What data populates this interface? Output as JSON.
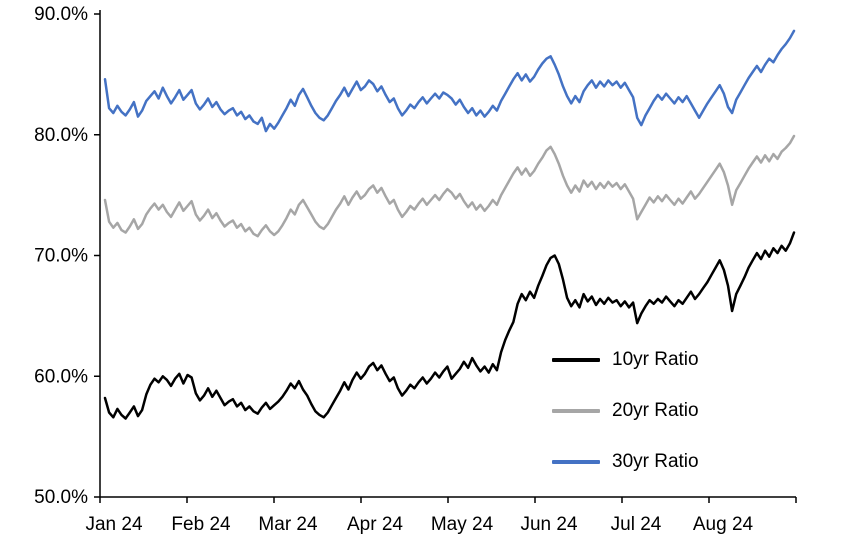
{
  "chart_data": {
    "type": "line",
    "title": "",
    "xlabel": "",
    "ylabel": "",
    "ylim": [
      50,
      90
    ],
    "grid": false,
    "legend_position": "inside-lower-right",
    "y_tick_values": [
      50,
      60,
      70,
      80,
      90
    ],
    "y_tick_labels": [
      "50.0%",
      "60.0%",
      "70.0%",
      "80.0%",
      "90.0%"
    ],
    "x_tick_labels": [
      "Jan 24",
      "Feb 24",
      "Mar 24",
      "Apr 24",
      "May 24",
      "Jun 24",
      "Jul 24",
      "Aug 24"
    ],
    "points_per_month": 21,
    "axis_color": "#000000",
    "series": [
      {
        "name": "10yr Ratio",
        "color": "#000000",
        "values": [
          58.2,
          57.0,
          56.6,
          57.3,
          56.8,
          56.5,
          57.0,
          57.5,
          56.7,
          57.2,
          58.5,
          59.3,
          59.8,
          59.5,
          60.0,
          59.7,
          59.2,
          59.8,
          60.2,
          59.4,
          60.1,
          59.9,
          58.6,
          58.0,
          58.4,
          59.0,
          58.3,
          58.8,
          58.2,
          57.6,
          57.9,
          58.1,
          57.5,
          57.8,
          57.2,
          57.5,
          57.1,
          56.9,
          57.4,
          57.8,
          57.3,
          57.6,
          57.9,
          58.3,
          58.8,
          59.4,
          59.0,
          59.6,
          58.9,
          58.4,
          57.7,
          57.1,
          56.8,
          56.6,
          57.0,
          57.6,
          58.2,
          58.8,
          59.5,
          58.9,
          59.7,
          60.3,
          59.8,
          60.2,
          60.8,
          61.1,
          60.5,
          60.9,
          60.2,
          59.6,
          59.9,
          59.0,
          58.4,
          58.8,
          59.3,
          59.0,
          59.5,
          59.9,
          59.4,
          59.8,
          60.3,
          59.9,
          60.4,
          60.8,
          59.8,
          60.2,
          60.6,
          61.2,
          60.7,
          61.5,
          60.9,
          60.4,
          60.8,
          60.3,
          61.0,
          60.5,
          62.0,
          63.0,
          63.8,
          64.5,
          66.0,
          66.8,
          66.3,
          67.0,
          66.5,
          67.5,
          68.3,
          69.2,
          69.8,
          70.0,
          69.3,
          68.0,
          66.5,
          65.8,
          66.3,
          65.7,
          66.8,
          66.2,
          66.6,
          65.9,
          66.4,
          66.0,
          66.5,
          66.1,
          66.3,
          65.8,
          66.2,
          65.7,
          66.1,
          64.4,
          65.2,
          65.8,
          66.3,
          66.0,
          66.4,
          66.1,
          66.6,
          66.2,
          65.8,
          66.3,
          66.0,
          66.5,
          67.0,
          66.4,
          66.8,
          67.3,
          67.8,
          68.4,
          69.0,
          69.6,
          68.8,
          67.5,
          65.4,
          66.8,
          67.5,
          68.2,
          69.0,
          69.6,
          70.2,
          69.7,
          70.4,
          69.9,
          70.6,
          70.2,
          70.8,
          70.4,
          71.0,
          71.9
        ]
      },
      {
        "name": "20yr Ratio",
        "color": "#a6a6a6",
        "values": [
          74.6,
          72.8,
          72.3,
          72.7,
          72.1,
          71.9,
          72.4,
          73.0,
          72.2,
          72.6,
          73.4,
          73.9,
          74.3,
          73.8,
          74.2,
          73.6,
          73.2,
          73.8,
          74.4,
          73.7,
          74.1,
          74.5,
          73.4,
          72.9,
          73.3,
          73.8,
          73.1,
          73.5,
          72.9,
          72.4,
          72.7,
          72.9,
          72.3,
          72.6,
          72.0,
          72.3,
          71.8,
          71.6,
          72.1,
          72.5,
          72.0,
          71.7,
          72.0,
          72.5,
          73.1,
          73.8,
          73.4,
          74.2,
          74.6,
          74.0,
          73.4,
          72.8,
          72.4,
          72.2,
          72.6,
          73.2,
          73.8,
          74.3,
          74.9,
          74.2,
          74.8,
          75.3,
          74.7,
          75.0,
          75.5,
          75.8,
          75.2,
          75.6,
          74.9,
          74.3,
          74.6,
          73.8,
          73.2,
          73.6,
          74.1,
          73.8,
          74.3,
          74.7,
          74.2,
          74.6,
          75.0,
          74.6,
          75.1,
          75.5,
          75.2,
          74.7,
          75.1,
          74.5,
          74.0,
          74.4,
          73.8,
          74.2,
          73.7,
          74.1,
          74.6,
          74.2,
          75.0,
          75.6,
          76.2,
          76.8,
          77.3,
          76.7,
          77.2,
          76.6,
          77.0,
          77.6,
          78.1,
          78.7,
          79.0,
          78.4,
          77.6,
          76.6,
          75.8,
          75.2,
          75.8,
          75.3,
          76.2,
          75.7,
          76.1,
          75.5,
          76.0,
          75.6,
          76.1,
          75.7,
          76.0,
          75.5,
          75.9,
          75.3,
          74.7,
          73.0,
          73.6,
          74.2,
          74.8,
          74.4,
          74.9,
          74.5,
          75.0,
          74.6,
          74.2,
          74.7,
          74.3,
          74.8,
          75.3,
          74.7,
          75.1,
          75.6,
          76.1,
          76.6,
          77.1,
          77.6,
          76.9,
          75.8,
          74.2,
          75.4,
          76.0,
          76.6,
          77.2,
          77.7,
          78.2,
          77.7,
          78.3,
          77.8,
          78.4,
          78.0,
          78.6,
          78.9,
          79.3,
          79.9
        ]
      },
      {
        "name": "30yr Ratio",
        "color": "#4472c4",
        "values": [
          84.6,
          82.2,
          81.8,
          82.4,
          81.9,
          81.6,
          82.1,
          82.7,
          81.5,
          82.0,
          82.8,
          83.2,
          83.6,
          83.0,
          83.9,
          83.2,
          82.6,
          83.1,
          83.7,
          82.9,
          83.3,
          83.7,
          82.6,
          82.1,
          82.5,
          83.0,
          82.3,
          82.7,
          82.1,
          81.7,
          82.0,
          82.2,
          81.6,
          81.9,
          81.3,
          81.6,
          81.1,
          80.9,
          81.4,
          80.3,
          80.9,
          80.5,
          81.0,
          81.6,
          82.2,
          82.9,
          82.4,
          83.3,
          83.8,
          83.1,
          82.4,
          81.8,
          81.4,
          81.2,
          81.6,
          82.2,
          82.8,
          83.3,
          83.9,
          83.2,
          83.8,
          84.4,
          83.7,
          84.0,
          84.5,
          84.2,
          83.6,
          84.0,
          83.3,
          82.7,
          83.0,
          82.2,
          81.6,
          82.0,
          82.5,
          82.2,
          82.7,
          83.1,
          82.6,
          83.0,
          83.4,
          83.0,
          83.5,
          83.3,
          83.0,
          82.5,
          82.9,
          82.3,
          81.8,
          82.2,
          81.6,
          82.0,
          81.5,
          81.9,
          82.4,
          82.0,
          82.8,
          83.4,
          84.0,
          84.6,
          85.1,
          84.5,
          85.0,
          84.4,
          84.8,
          85.4,
          85.9,
          86.3,
          86.5,
          85.8,
          85.0,
          84.0,
          83.2,
          82.6,
          83.2,
          82.7,
          83.6,
          84.1,
          84.5,
          83.9,
          84.4,
          84.0,
          84.5,
          84.1,
          84.4,
          83.9,
          84.3,
          83.7,
          83.1,
          81.4,
          80.8,
          81.6,
          82.2,
          82.8,
          83.3,
          82.9,
          83.4,
          83.0,
          82.6,
          83.1,
          82.7,
          83.2,
          82.6,
          82.0,
          81.4,
          82.0,
          82.6,
          83.1,
          83.6,
          84.1,
          83.4,
          82.3,
          81.8,
          82.9,
          83.5,
          84.1,
          84.7,
          85.2,
          85.7,
          85.2,
          85.8,
          86.3,
          86.0,
          86.6,
          87.1,
          87.5,
          88.0,
          88.6
        ]
      }
    ]
  },
  "legend": {
    "items": [
      {
        "label": "10yr Ratio"
      },
      {
        "label": "20yr Ratio"
      },
      {
        "label": "30yr Ratio"
      }
    ]
  }
}
